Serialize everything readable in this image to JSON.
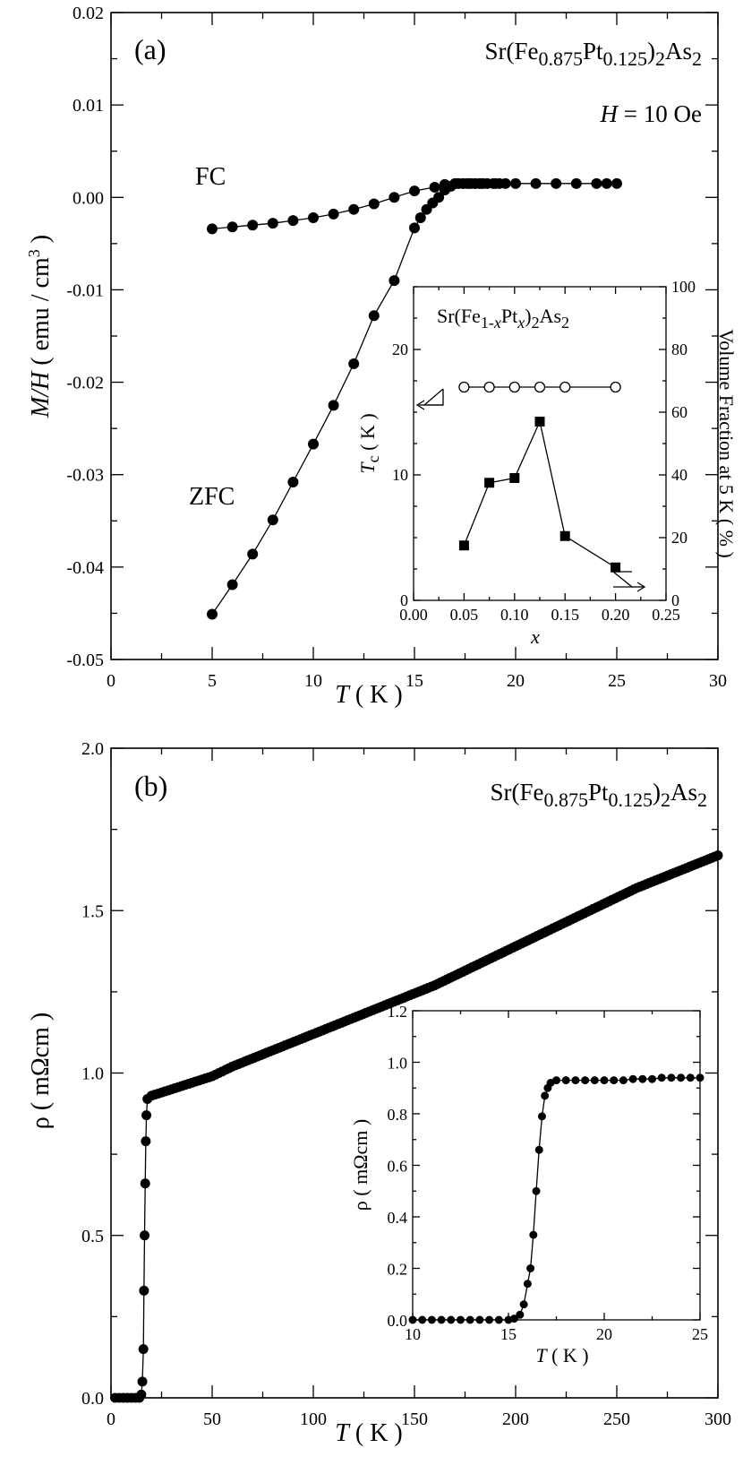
{
  "chart_data": [
    {
      "type": "scatter",
      "panel_label": "(a)",
      "formula_text": "Sr(Fe0.875Pt0.125)2As2",
      "formula_parts": [
        "Sr(Fe",
        "0.875",
        "Pt",
        "0.125",
        ")",
        "2",
        "As",
        "2"
      ],
      "field_text": "H = 10 Oe",
      "field_parts": [
        "H",
        " = 10 Oe"
      ],
      "xlabel": "T ( K )",
      "xlabel_parts": [
        "T",
        " ( K )"
      ],
      "ylabel": "M/H ( emu / cm3 )",
      "ylabel_parts": [
        "M/H",
        " ( emu / cm",
        "3",
        " )"
      ],
      "xlim": [
        0,
        30
      ],
      "ylim": [
        -0.05,
        0.02
      ],
      "xticks": [
        "0",
        "5",
        "10",
        "15",
        "20",
        "25",
        "30"
      ],
      "yticks": [
        "-0.05",
        "-0.04",
        "-0.03",
        "-0.02",
        "-0.01",
        "0.00",
        "0.01",
        "0.02"
      ],
      "series": [
        {
          "name": "FC",
          "marker": "filled-circle",
          "x": [
            5,
            6,
            7,
            8,
            9,
            10,
            11,
            12,
            13,
            14,
            15,
            16,
            16.5,
            17,
            17.2,
            17.4,
            17.6,
            17.8,
            18,
            18.2,
            18.4,
            19,
            20,
            21,
            22,
            23,
            24,
            24.5,
            25
          ],
          "y": [
            -0.0034,
            -0.0032,
            -0.003,
            -0.0028,
            -0.0025,
            -0.0022,
            -0.0018,
            -0.0013,
            -0.0007,
            0.0,
            0.0007,
            0.0011,
            0.0014,
            0.0015,
            0.0015,
            0.0015,
            0.0015,
            0.0015,
            0.0015,
            0.0015,
            0.0015,
            0.0015,
            0.0015,
            0.0015,
            0.0015,
            0.0015,
            0.0015,
            0.0015,
            0.0015
          ]
        },
        {
          "name": "ZFC",
          "marker": "filled-circle",
          "x": [
            5,
            6,
            7,
            8,
            9,
            10,
            11,
            12,
            13,
            14,
            15,
            15.3,
            15.6,
            15.9,
            16.2,
            16.5,
            16.8,
            17.1,
            17.4,
            17.7,
            18,
            18.3,
            18.6,
            18.9,
            19.2,
            19.5
          ],
          "y": [
            -0.0451,
            -0.0419,
            -0.0386,
            -0.0349,
            -0.0308,
            -0.0267,
            -0.0225,
            -0.018,
            -0.0128,
            -0.009,
            -0.0033,
            -0.0022,
            -0.0013,
            -0.0006,
            0.0,
            0.0008,
            0.0012,
            0.0015,
            0.0015,
            0.0015,
            0.0015,
            0.0015,
            0.0015,
            0.0015,
            0.0015,
            0.0015
          ]
        }
      ],
      "annotations": [
        {
          "text": "FC",
          "anchor_series": "FC"
        },
        {
          "text": "ZFC",
          "anchor_series": "ZFC"
        }
      ],
      "inset": {
        "type": "line",
        "formula_text": "Sr(Fe1-xPtx)2As2",
        "formula_parts": [
          "Sr(Fe",
          "1-",
          "x",
          "Pt",
          "x",
          ")",
          "2",
          "As",
          "2"
        ],
        "xlabel": "x",
        "ylabel_left": "Tc ( K )",
        "ylabel_left_parts": [
          "T",
          "c",
          " ( K )"
        ],
        "ylabel_right": "Volume Fraction at 5 K ( % )",
        "xlim": [
          0,
          0.25
        ],
        "ylim_left": [
          0,
          25
        ],
        "ylim_right": [
          0,
          100
        ],
        "xticks": [
          "0.00",
          "0.05",
          "0.10",
          "0.15",
          "0.20",
          "0.25"
        ],
        "yticks_left": [
          "0",
          "10",
          "20"
        ],
        "yticks_right": [
          "0",
          "20",
          "40",
          "60",
          "80",
          "100"
        ],
        "series": [
          {
            "name": "Tc",
            "axis": "left",
            "marker": "open-circle",
            "x": [
              0.05,
              0.075,
              0.1,
              0.125,
              0.15,
              0.2
            ],
            "y": [
              17,
              17,
              17,
              17,
              17,
              17
            ]
          },
          {
            "name": "Volume Fraction",
            "axis": "right",
            "marker": "filled-square",
            "x": [
              0.05,
              0.075,
              0.1,
              0.125,
              0.15,
              0.2
            ],
            "y": [
              17.5,
              37.5,
              39,
              57,
              20.5,
              10.5
            ]
          }
        ]
      }
    },
    {
      "type": "scatter",
      "panel_label": "(b)",
      "formula_text": "Sr(Fe0.875Pt0.125)2As2",
      "formula_parts": [
        "Sr(Fe",
        "0.875",
        "Pt",
        "0.125",
        ")",
        "2",
        "As",
        "2"
      ],
      "xlabel": "T ( K )",
      "xlabel_parts": [
        "T",
        " ( K )"
      ],
      "ylabel": "ρ ( mΩcm )",
      "xlim": [
        0,
        300
      ],
      "ylim": [
        0,
        2.0
      ],
      "xticks": [
        "0",
        "50",
        "100",
        "150",
        "200",
        "250",
        "300"
      ],
      "yticks": [
        "0.0",
        "0.5",
        "1.0",
        "1.5",
        "2.0"
      ],
      "series": [
        {
          "name": "ρ",
          "marker": "filled-circle",
          "description": "dense data points",
          "x": [
            2,
            4,
            6,
            8,
            10,
            12,
            14,
            15,
            15.5,
            16,
            16.3,
            16.6,
            16.9,
            17.2,
            17.5,
            18,
            20,
            25,
            30,
            40,
            50,
            60,
            80,
            100,
            120,
            140,
            160,
            180,
            200,
            220,
            240,
            260,
            280,
            300
          ],
          "y": [
            0.0,
            0.0,
            0.0,
            0.0,
            0.0,
            0.0,
            0.0,
            0.01,
            0.05,
            0.15,
            0.33,
            0.5,
            0.66,
            0.79,
            0.87,
            0.92,
            0.93,
            0.94,
            0.95,
            0.97,
            0.99,
            1.02,
            1.07,
            1.12,
            1.17,
            1.22,
            1.27,
            1.33,
            1.39,
            1.45,
            1.51,
            1.57,
            1.62,
            1.67
          ]
        }
      ],
      "inset": {
        "type": "scatter",
        "xlabel": "T ( K )",
        "xlabel_parts": [
          "T",
          " ( K )"
        ],
        "ylabel": "ρ ( mΩcm )",
        "xlim": [
          10,
          25
        ],
        "ylim": [
          0,
          1.2
        ],
        "xticks": [
          "10",
          "15",
          "20",
          "25"
        ],
        "yticks": [
          "0.0",
          "0.2",
          "0.4",
          "0.6",
          "0.8",
          "1.0",
          "1.2"
        ],
        "series": [
          {
            "name": "ρ",
            "marker": "filled-circle",
            "x": [
              10,
              10.5,
              11,
              11.5,
              12,
              12.5,
              13,
              13.5,
              14,
              14.5,
              15,
              15.3,
              15.6,
              15.8,
              16.0,
              16.15,
              16.3,
              16.45,
              16.6,
              16.75,
              16.9,
              17.05,
              17.2,
              17.5,
              18,
              18.5,
              19,
              19.5,
              20,
              20.5,
              21,
              21.5,
              22,
              22.5,
              23,
              23.5,
              24,
              24.5,
              25
            ],
            "y": [
              0.0,
              0.0,
              0.0,
              0.0,
              0.0,
              0.0,
              0.0,
              0.0,
              0.0,
              0.0,
              0.0,
              0.005,
              0.02,
              0.06,
              0.14,
              0.2,
              0.33,
              0.5,
              0.66,
              0.79,
              0.87,
              0.9,
              0.92,
              0.93,
              0.93,
              0.93,
              0.93,
              0.93,
              0.93,
              0.93,
              0.93,
              0.935,
              0.935,
              0.935,
              0.94,
              0.94,
              0.94,
              0.94,
              0.94
            ]
          }
        ]
      }
    }
  ]
}
